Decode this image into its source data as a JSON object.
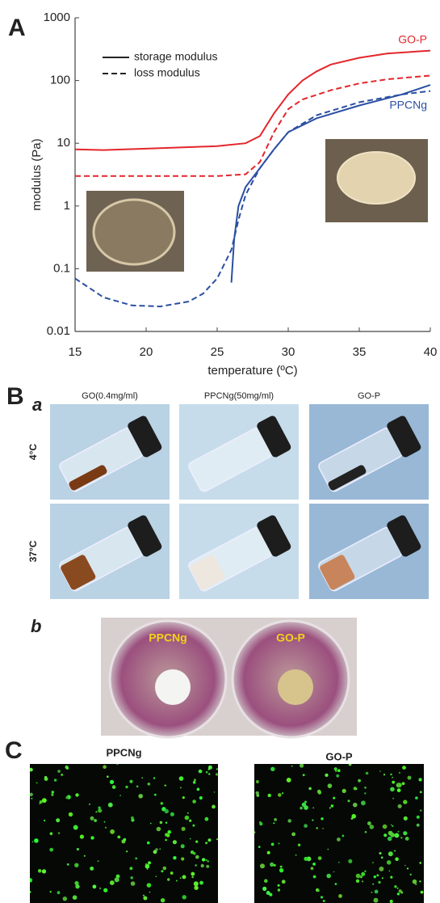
{
  "panel_labels": [
    "A",
    "B",
    "C"
  ],
  "chart_data": {
    "type": "line",
    "x_label": "temperature (ºC)",
    "y_label": "modulus (Pa)",
    "xlim": [
      15,
      40
    ],
    "xticks": [
      15,
      20,
      25,
      30,
      35,
      40
    ],
    "ylim": [
      0.01,
      1000
    ],
    "yticks": [
      0.01,
      0.1,
      1,
      10,
      100,
      1000
    ],
    "yscale": "log",
    "legend": [
      "storage modulus",
      "loss modulus"
    ],
    "series": [
      {
        "name": "GO-P",
        "color": "#e3262b",
        "lines": [
          {
            "dash": "solid",
            "x": [
              15,
              17,
              20,
              25,
              27,
              28,
              29,
              30,
              31,
              32,
              33,
              35,
              37,
              40
            ],
            "values": [
              8,
              7.8,
              8.2,
              9,
              10,
              13,
              30,
              60,
              100,
              140,
              180,
              230,
              270,
              300
            ]
          },
          {
            "dash": "dashed",
            "x": [
              15,
              20,
              25,
              27,
              28,
              29,
              30,
              31,
              33,
              35,
              37,
              40
            ],
            "values": [
              3,
              3,
              3,
              3.2,
              5,
              15,
              35,
              50,
              70,
              90,
              105,
              120
            ]
          }
        ]
      },
      {
        "name": "PPCNg",
        "color": "#2b4fa3",
        "lines": [
          {
            "dash": "solid",
            "x": [
              26,
              26.2,
              26.5,
              27,
              28,
              29,
              30,
              32,
              35,
              38,
              40
            ],
            "values": [
              0.06,
              0.3,
              1,
              2,
              4,
              8,
              15,
              25,
              40,
              60,
              85
            ]
          },
          {
            "dash": "dashed",
            "x": [
              15,
              17,
              19,
              21,
              23,
              24,
              25,
              26,
              26.5,
              27,
              28,
              29,
              30,
              32,
              35,
              38,
              40
            ],
            "values": [
              0.07,
              0.035,
              0.026,
              0.025,
              0.03,
              0.04,
              0.07,
              0.2,
              0.6,
              1.5,
              4,
              8,
              15,
              28,
              45,
              60,
              68
            ]
          }
        ]
      }
    ]
  },
  "panel_b": {
    "sub_labels": [
      "a",
      "b"
    ],
    "columns": [
      "GO(0.4mg/ml)",
      "PPCNg(50mg/ml)",
      "GO-P"
    ],
    "rows": [
      "4°C",
      "37°C"
    ],
    "plate_labels": [
      "PPCNg",
      "GO-P"
    ]
  },
  "panel_c": {
    "titles": [
      "PPCNg",
      "GO-P"
    ]
  }
}
